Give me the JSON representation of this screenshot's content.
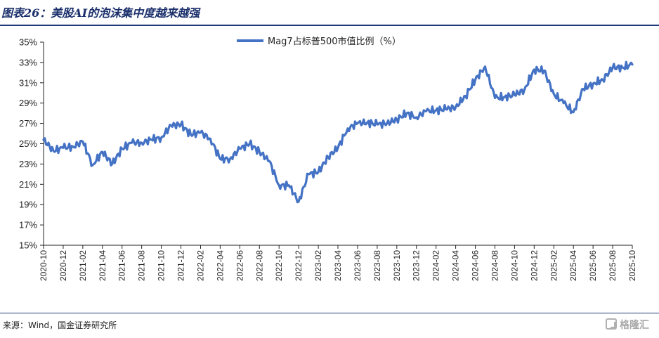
{
  "header": {
    "title": "图表26：美股AI的泡沫集中度越来越强"
  },
  "footer": {
    "source": "来源：Wind，国金证券研究所",
    "logo_text": "格隆汇"
  },
  "chart_data": {
    "type": "line",
    "title": "",
    "xlabel": "",
    "ylabel": "",
    "ylim": [
      15,
      35
    ],
    "yticks": [
      15,
      17,
      19,
      21,
      23,
      25,
      27,
      29,
      31,
      33,
      35
    ],
    "ytick_labels": [
      "15%",
      "17%",
      "19%",
      "21%",
      "23%",
      "25%",
      "27%",
      "29%",
      "31%",
      "33%",
      "35%"
    ],
    "xtick_labels": [
      "2020-10",
      "2020-12",
      "2021-02",
      "2021-04",
      "2021-06",
      "2021-08",
      "2021-10",
      "2021-12",
      "2022-02",
      "2022-04",
      "2022-06",
      "2022-08",
      "2022-10",
      "2022-12",
      "2023-02",
      "2023-04",
      "2023-06",
      "2023-08",
      "2023-10",
      "2023-12",
      "2024-02",
      "2024-04",
      "2024-06",
      "2024-08",
      "2024-10",
      "2024-12",
      "2025-02",
      "2025-04",
      "2025-06",
      "2025-08",
      "2025-10"
    ],
    "legend": "top-center",
    "grid": false,
    "color": "#4472C4",
    "series": [
      {
        "name": "Mag7占标普500市值比例（%）",
        "x": [
          "2020-10",
          "2020-11",
          "2020-12",
          "2021-01",
          "2021-02",
          "2021-03",
          "2021-04",
          "2021-05",
          "2021-06",
          "2021-07",
          "2021-08",
          "2021-09",
          "2021-10",
          "2021-11",
          "2021-12",
          "2022-01",
          "2022-02",
          "2022-03",
          "2022-04",
          "2022-05",
          "2022-06",
          "2022-07",
          "2022-08",
          "2022-09",
          "2022-10",
          "2022-11",
          "2022-12",
          "2023-01",
          "2023-02",
          "2023-03",
          "2023-04",
          "2023-05",
          "2023-06",
          "2023-07",
          "2023-08",
          "2023-09",
          "2023-10",
          "2023-11",
          "2023-12",
          "2024-01",
          "2024-02",
          "2024-03",
          "2024-04",
          "2024-05",
          "2024-06",
          "2024-07",
          "2024-08",
          "2024-09",
          "2024-10",
          "2024-11",
          "2024-12",
          "2025-01",
          "2025-02",
          "2025-03",
          "2025-04",
          "2025-05",
          "2025-06",
          "2025-07",
          "2025-08",
          "2025-09",
          "2025-10"
        ],
        "values": [
          25.4,
          24.3,
          24.6,
          24.7,
          25.2,
          22.9,
          24.2,
          23.0,
          24.5,
          25.1,
          25.1,
          25.4,
          25.6,
          26.8,
          26.9,
          25.9,
          26.1,
          25.5,
          23.5,
          23.5,
          24.5,
          25.0,
          24.2,
          23.3,
          20.9,
          20.9,
          19.3,
          22.0,
          22.2,
          23.7,
          24.6,
          26.5,
          27.0,
          27.1,
          26.9,
          27.0,
          27.4,
          28.0,
          27.6,
          28.2,
          28.3,
          28.4,
          28.6,
          29.7,
          31.3,
          32.6,
          29.5,
          29.6,
          29.8,
          30.3,
          32.3,
          32.2,
          29.9,
          29.0,
          28.1,
          30.4,
          30.9,
          31.3,
          32.5,
          32.5,
          32.8
        ]
      }
    ]
  }
}
